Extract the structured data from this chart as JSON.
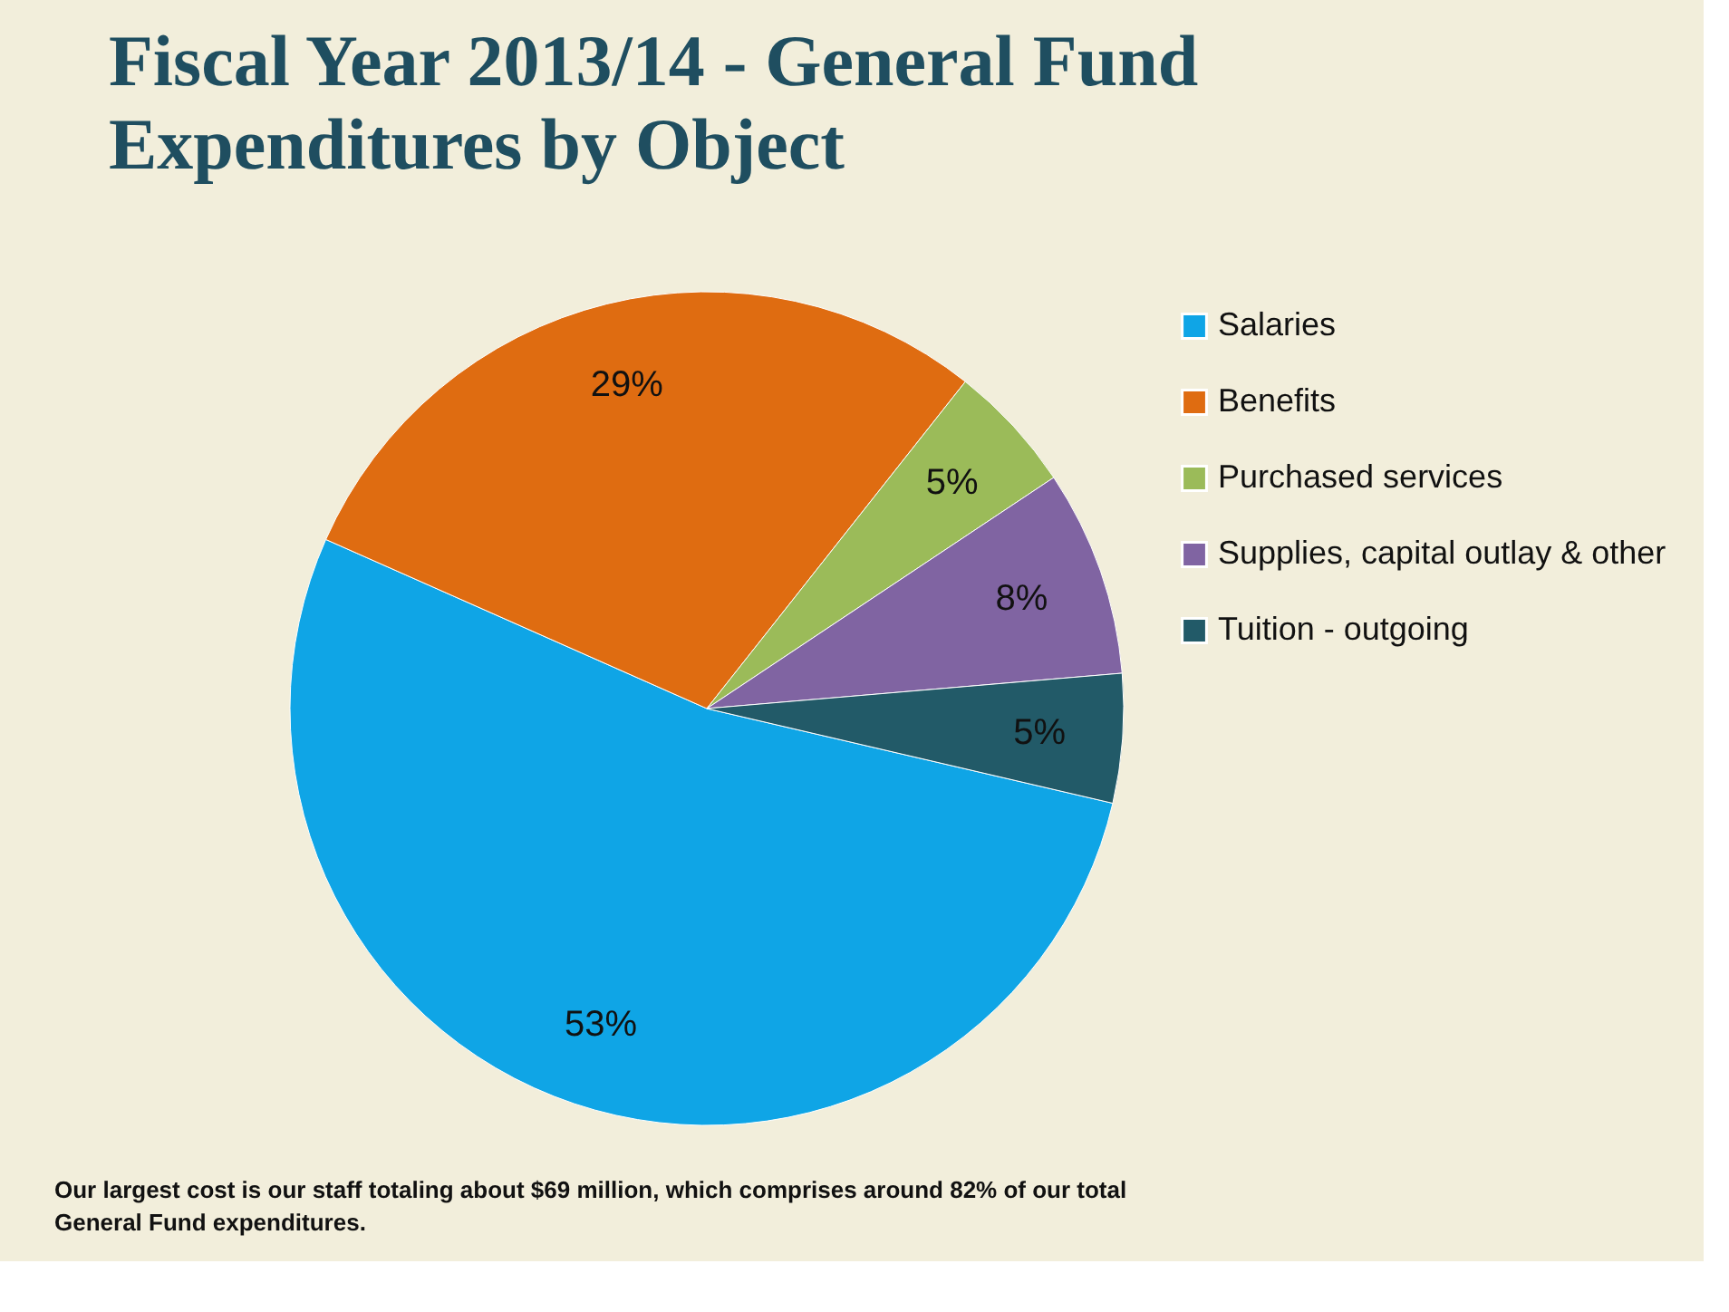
{
  "chart_data": {
    "type": "pie",
    "title": "Fiscal Year 2013/14 - General Fund Expenditures  by Object",
    "categories": [
      "Salaries",
      "Benefits",
      "Purchased services",
      "Supplies, capital outlay & other",
      "Tuition - outgoing"
    ],
    "values": [
      53,
      29,
      5,
      8,
      5
    ],
    "value_labels": [
      "53%",
      "29%",
      "5%",
      "8%",
      "5%"
    ],
    "colors": [
      "#0fa5e6",
      "#df6c11",
      "#9bbb59",
      "#8064a2",
      "#225a68"
    ],
    "legend": "right",
    "annotations": [
      "Our largest cost is our staff totaling about $69 million, which comprises around 82% of our total General Fund expenditures."
    ]
  }
}
